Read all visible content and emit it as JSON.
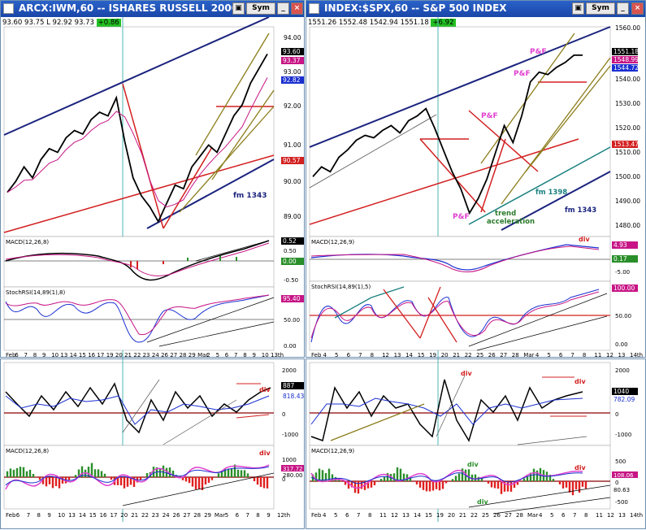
{
  "windows": [
    {
      "id": "iwm-60",
      "title": "ARCX:IWM,60 -- ISHARES RUSSELL 2000 IND",
      "quote": {
        "open": "93.60",
        "high": "93.75",
        "low": "92.92",
        "close": "93.73",
        "change": "+0.86"
      },
      "price_axis": [
        "94.00",
        "93.50",
        "93.00",
        "92.50",
        "92.00",
        "91.50",
        "91.00",
        "90.50",
        "90.00",
        "89.50",
        "89.00"
      ],
      "price_labels": {
        "last": "93.60",
        "ma1": "93.37",
        "ma2": "92.82",
        "ma3": "90.57"
      },
      "annotations": [
        "fm 1343"
      ],
      "macd": {
        "label": "MACD(12,26,8)",
        "axis": [
          "0.50",
          "0.00",
          "-0.50"
        ],
        "value": "0.52",
        "hist": "0.00"
      },
      "stochrsi": {
        "label": "StochRSI(14,89(1),8)",
        "axis": [
          "50.00",
          "0.00"
        ],
        "value": "95.40"
      },
      "dates": [
        "Feb",
        "6",
        "7",
        "8",
        "9",
        "10",
        "13",
        "14",
        "15",
        "16",
        "17",
        "19",
        "20",
        "21",
        "22",
        "23",
        "24",
        "26",
        "27",
        "28",
        "29",
        "Mar",
        "2",
        "5",
        "6",
        "7",
        "8",
        "9",
        "10",
        "13th"
      ]
    },
    {
      "id": "spx-60",
      "title": "INDEX:$SPX,60 -- S&P 500 INDEX",
      "quote": {
        "open": "1551.26",
        "high": "1552.48",
        "low": "1542.94",
        "close": "1551.18",
        "change": "+6.92"
      },
      "price_axis": [
        "1560.00",
        "1550.00",
        "1540.00",
        "1530.00",
        "1520.00",
        "1510.00",
        "1500.00",
        "1490.00",
        "1480.00"
      ],
      "price_labels": {
        "last": "1551.18",
        "ma1": "1548.99",
        "ma2": "1544.72",
        "ma3": "1513.47"
      },
      "annotations": [
        "P&F",
        "P&F",
        "P&F",
        "P&F",
        "trend",
        "acceleration",
        "fm 1398",
        "fm 1343",
        "div"
      ],
      "macd": {
        "label": "MACD(12,26,9)",
        "axis": [
          "0.00",
          "-5.00"
        ],
        "value": "4.93",
        "hist": "0.17"
      },
      "stochrsi": {
        "label": "StochRSI(14,89(1),5)",
        "axis": [
          "100.00",
          "50.00",
          "0.00"
        ],
        "value": "100.00"
      },
      "dates": [
        "Feb",
        "4",
        "5",
        "6",
        "7",
        "8",
        "12",
        "13",
        "14",
        "15",
        "19",
        "20",
        "21",
        "22",
        "25",
        "26",
        "27",
        "28",
        "Mar",
        "4",
        "5",
        "6",
        "7",
        "8",
        "11",
        "12",
        "13",
        "14th"
      ]
    },
    {
      "id": "iwm-tick",
      "title": "",
      "top": {
        "axis": [
          "2000",
          "1000",
          "0",
          "-1000"
        ],
        "value": "887",
        "value2": "818.43"
      },
      "annotations": [
        "div",
        "div"
      ],
      "macd": {
        "label": "MACD(12,26,8)",
        "axis": [
          "1000",
          "0",
          "-1000"
        ],
        "value": "317.72",
        "value2": "280.00"
      },
      "dates": [
        "Feb",
        "6",
        "7",
        "8",
        "9",
        "10",
        "13",
        "14",
        "15",
        "16",
        "17",
        "20",
        "21",
        "22",
        "23",
        "24",
        "26",
        "27",
        "28",
        "29",
        "Mar",
        "5",
        "6",
        "7",
        "8",
        "9",
        "12th"
      ]
    },
    {
      "id": "spx-tick",
      "title": "",
      "top": {
        "axis": [
          "2000",
          "1000",
          "0",
          "-1000"
        ],
        "value": "1040",
        "value2": "782.09"
      },
      "annotations": [
        "div",
        "div",
        "div",
        "div"
      ],
      "macd": {
        "label": "MACD(12,26,9)",
        "axis": [
          "500",
          "0",
          "-500"
        ],
        "value": "108.06",
        "value2": "80.63"
      },
      "dates": [
        "Feb",
        "4",
        "5",
        "6",
        "7",
        "8",
        "11",
        "12",
        "13",
        "14",
        "15",
        "19",
        "20",
        "21",
        "22",
        "25",
        "26",
        "27",
        "28",
        "Mar",
        "4",
        "5",
        "6",
        "7",
        "8",
        "11",
        "12",
        "13",
        "14th"
      ]
    }
  ],
  "chart_data": [
    {
      "type": "line",
      "title": "ARCX:IWM,60 -- ISHARES RUSSELL 2000 IND",
      "ylim": [
        88.8,
        94.4
      ],
      "series": [
        {
          "name": "price",
          "values": [
            89.9,
            90.2,
            90.6,
            90.3,
            90.8,
            91.1,
            91.0,
            91.4,
            91.6,
            91.5,
            91.9,
            92.1,
            92.0,
            92.5,
            91.3,
            90.3,
            89.8,
            89.5,
            89.1,
            89.6,
            90.1,
            90.0,
            90.6,
            90.9,
            91.2,
            91.0,
            91.5,
            92.0,
            92.3,
            92.9,
            93.3,
            93.7
          ]
        }
      ]
    },
    {
      "type": "line",
      "title": "INDEX:$SPX,60 -- S&P 500 INDEX",
      "ylim": [
        1478,
        1562
      ],
      "series": [
        {
          "name": "price",
          "values": [
            1501,
            1505,
            1503,
            1509,
            1512,
            1516,
            1518,
            1517,
            1520,
            1522,
            1519,
            1524,
            1526,
            1529,
            1521,
            1512,
            1503,
            1496,
            1486,
            1492,
            1500,
            1511,
            1522,
            1515,
            1526,
            1540,
            1544,
            1543,
            1546,
            1548,
            1551,
            1551
          ]
        }
      ]
    }
  ]
}
